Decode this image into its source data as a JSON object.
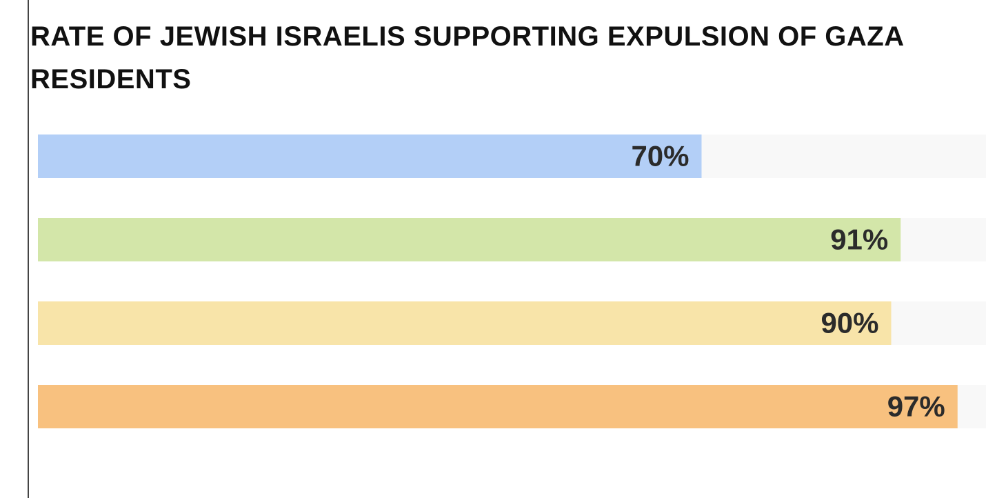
{
  "chart_data": {
    "type": "bar",
    "orientation": "horizontal",
    "title": "RATE OF JEWISH ISRAELIS SUPPORTING EXPULSION OF GAZA RESIDENTS",
    "categories": [
      null,
      null,
      null,
      null
    ],
    "values": [
      70,
      91,
      90,
      97
    ],
    "value_labels": [
      "70%",
      "91%",
      "90%",
      "97%"
    ],
    "colors": [
      "#b3cff7",
      "#d3e6a9",
      "#f8e4a9",
      "#f8c17f"
    ],
    "track_color": "#f8f8f8",
    "xlim": [
      0,
      100
    ]
  }
}
